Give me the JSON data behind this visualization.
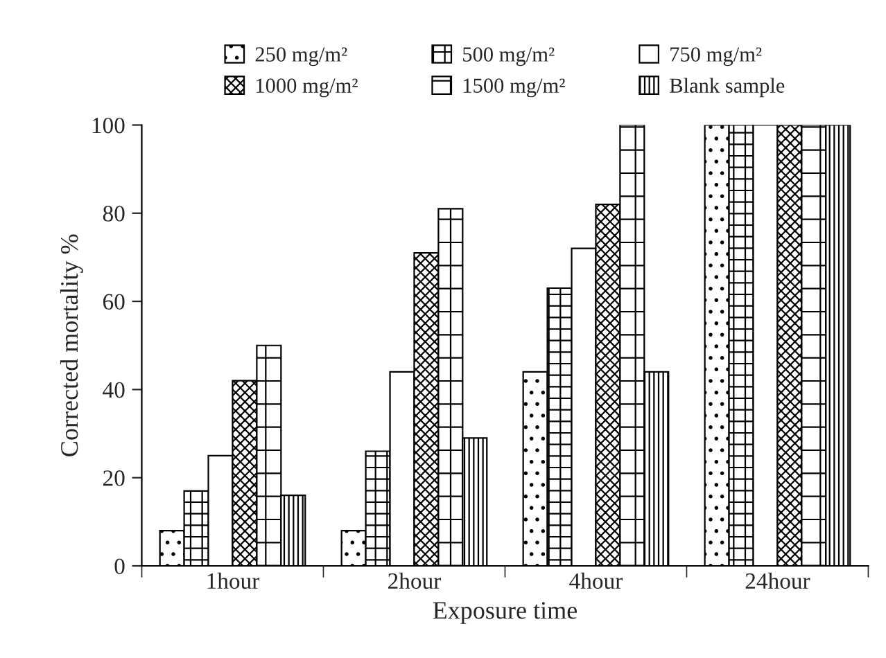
{
  "chart_data": {
    "type": "bar",
    "xlabel": "Exposure time",
    "ylabel": "Corrected mortality %",
    "categories": [
      "1hour",
      "2hour",
      "4hour",
      "24hour"
    ],
    "series": [
      {
        "name": "250 mg/m²",
        "values": [
          8,
          8,
          44,
          100
        ]
      },
      {
        "name": "500 mg/m²",
        "values": [
          17,
          26,
          63,
          100
        ]
      },
      {
        "name": "750 mg/m²",
        "values": [
          25,
          44,
          72,
          100
        ]
      },
      {
        "name": "1000 mg/m²",
        "values": [
          42,
          71,
          82,
          100
        ]
      },
      {
        "name": "1500 mg/m²",
        "values": [
          50,
          81,
          100,
          100
        ]
      },
      {
        "name": "Blank sample",
        "values": [
          16,
          29,
          44,
          100
        ]
      }
    ],
    "ylim": [
      0,
      100
    ],
    "yticks": [
      0,
      20,
      40,
      60,
      80,
      100
    ],
    "grid": false,
    "legend": "top"
  }
}
